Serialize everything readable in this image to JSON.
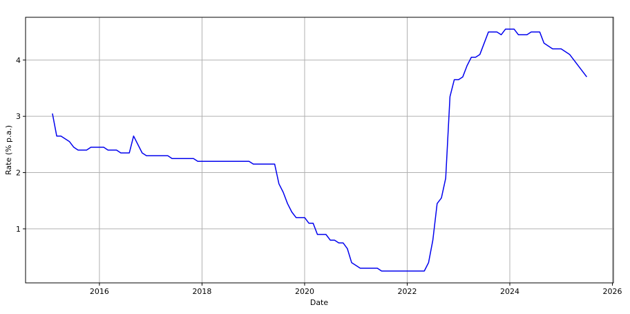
{
  "chart_data": {
    "type": "line",
    "title": "",
    "xlabel": "Date",
    "ylabel": "Rate (% p.a.)",
    "xlim": [
      2014.56,
      2026.02
    ],
    "ylim": [
      0.04,
      4.76
    ],
    "x_ticks": [
      "2016",
      "2018",
      "2020",
      "2022",
      "2024",
      "2026"
    ],
    "y_ticks": [
      "1",
      "2",
      "3",
      "4"
    ],
    "grid": true,
    "line_color": "#0000ee",
    "series": [
      {
        "points": [
          [
            "2015-02",
            3.05
          ],
          [
            "2015-03",
            2.65
          ],
          [
            "2015-04",
            2.65
          ],
          [
            "2015-06",
            2.55
          ],
          [
            "2015-07",
            2.45
          ],
          [
            "2015-08",
            2.4
          ],
          [
            "2015-10",
            2.4
          ],
          [
            "2015-11",
            2.45
          ],
          [
            "2016-02",
            2.45
          ],
          [
            "2016-03",
            2.4
          ],
          [
            "2016-05",
            2.4
          ],
          [
            "2016-06",
            2.35
          ],
          [
            "2016-08",
            2.35
          ],
          [
            "2016-09",
            2.65
          ],
          [
            "2016-11",
            2.35
          ],
          [
            "2016-12",
            2.3
          ],
          [
            "2017-05",
            2.3
          ],
          [
            "2017-06",
            2.25
          ],
          [
            "2017-11",
            2.25
          ],
          [
            "2017-12",
            2.2
          ],
          [
            "2018-12",
            2.2
          ],
          [
            "2019-01",
            2.15
          ],
          [
            "2019-06",
            2.15
          ],
          [
            "2019-07",
            1.8
          ],
          [
            "2019-08",
            1.65
          ],
          [
            "2019-09",
            1.45
          ],
          [
            "2019-10",
            1.3
          ],
          [
            "2019-11",
            1.2
          ],
          [
            "2020-01",
            1.2
          ],
          [
            "2020-02",
            1.1
          ],
          [
            "2020-03",
            1.1
          ],
          [
            "2020-04",
            0.9
          ],
          [
            "2020-06",
            0.9
          ],
          [
            "2020-07",
            0.8
          ],
          [
            "2020-08",
            0.8
          ],
          [
            "2020-09",
            0.75
          ],
          [
            "2020-10",
            0.75
          ],
          [
            "2020-11",
            0.65
          ],
          [
            "2020-12",
            0.4
          ],
          [
            "2021-02",
            0.3
          ],
          [
            "2021-06",
            0.3
          ],
          [
            "2021-07",
            0.25
          ],
          [
            "2022-05",
            0.25
          ],
          [
            "2022-06",
            0.4
          ],
          [
            "2022-07",
            0.8
          ],
          [
            "2022-08",
            1.45
          ],
          [
            "2022-09",
            1.55
          ],
          [
            "2022-10",
            1.9
          ],
          [
            "2022-11",
            3.35
          ],
          [
            "2022-12",
            3.65
          ],
          [
            "2023-01",
            3.65
          ],
          [
            "2023-02",
            3.7
          ],
          [
            "2023-03",
            3.9
          ],
          [
            "2023-04",
            4.05
          ],
          [
            "2023-05",
            4.05
          ],
          [
            "2023-06",
            4.1
          ],
          [
            "2023-08",
            4.5
          ],
          [
            "2023-10",
            4.5
          ],
          [
            "2023-11",
            4.45
          ],
          [
            "2023-12",
            4.55
          ],
          [
            "2024-02",
            4.55
          ],
          [
            "2024-03",
            4.45
          ],
          [
            "2024-05",
            4.45
          ],
          [
            "2024-06",
            4.5
          ],
          [
            "2024-08",
            4.5
          ],
          [
            "2024-09",
            4.3
          ],
          [
            "2024-11",
            4.2
          ],
          [
            "2025-01",
            4.2
          ],
          [
            "2025-03",
            4.1
          ],
          [
            "2025-07",
            3.7
          ]
        ]
      }
    ]
  }
}
